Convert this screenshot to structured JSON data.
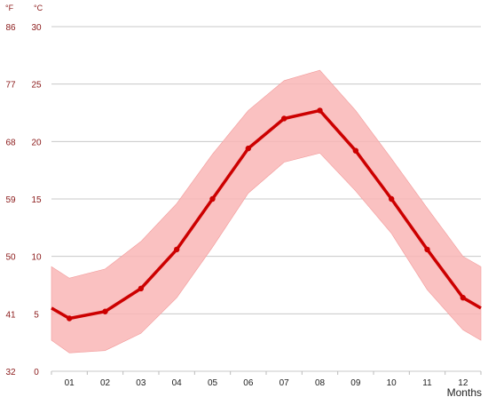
{
  "chart_data": {
    "type": "area",
    "x_title": "Months",
    "unit_f": "°F",
    "unit_c": "°C",
    "categories": [
      "01",
      "02",
      "03",
      "04",
      "05",
      "06",
      "07",
      "08",
      "09",
      "10",
      "11",
      "12"
    ],
    "y_ticks_c": [
      "0",
      "5",
      "10",
      "15",
      "20",
      "25",
      "30"
    ],
    "y_ticks_f": [
      "32",
      "41",
      "50",
      "59",
      "68",
      "77",
      "86"
    ],
    "ylim_c": [
      0,
      30
    ],
    "grid": true,
    "x": [
      0,
      0.5,
      1.5,
      2.5,
      3.5,
      4.5,
      5.5,
      6.5,
      7.5,
      8.5,
      9.5,
      10.5,
      11.5,
      12
    ],
    "series": [
      {
        "role": "band_max",
        "values": [
          9.1,
          8.1,
          8.9,
          11.3,
          14.6,
          18.9,
          22.7,
          25.3,
          26.2,
          22.7,
          18.5,
          14.2,
          10.0,
          9.1
        ]
      },
      {
        "role": "mean",
        "values": [
          5.5,
          4.6,
          5.2,
          7.2,
          10.6,
          15.0,
          19.4,
          22.0,
          22.7,
          19.2,
          15.0,
          10.6,
          6.4,
          5.5
        ]
      },
      {
        "role": "band_min",
        "values": [
          2.7,
          1.6,
          1.8,
          3.3,
          6.4,
          10.8,
          15.5,
          18.2,
          19.0,
          15.7,
          12.0,
          7.1,
          3.6,
          2.7
        ]
      }
    ],
    "colors": {
      "band": "#f9b6b6",
      "line": "#cc0000",
      "tick_text": "#8b1a1a",
      "grid": "#c8c8c8"
    }
  }
}
